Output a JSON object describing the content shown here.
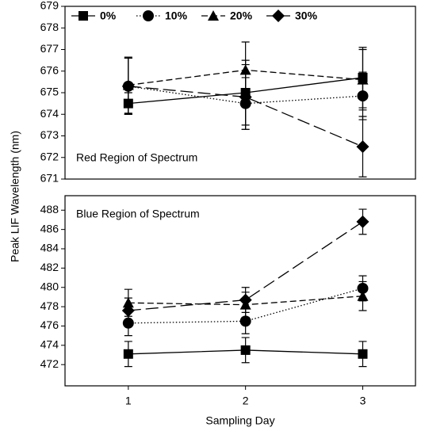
{
  "chart_data": [
    {
      "type": "line",
      "ylabel": "Peak LIF Wavelength (nm)",
      "annotation": "Red Region of Spectrum",
      "x": [
        1,
        2,
        3
      ],
      "xlim": [
        0.46,
        3.45
      ],
      "ylim": [
        671,
        679
      ],
      "yticks": [
        671,
        672,
        673,
        674,
        675,
        676,
        677,
        678,
        679
      ],
      "legend": "upper left",
      "series": [
        {
          "name": "0%",
          "color": "#000000",
          "marker": "square",
          "dash": "solid",
          "values": [
            674.5,
            675.0,
            675.7
          ],
          "errors": [
            0.5,
            1.5,
            1.4
          ]
        },
        {
          "name": "10%",
          "color": "#000000",
          "marker": "circle",
          "dash": "dotted",
          "values": [
            675.3,
            674.5,
            674.85
          ],
          "errors": [
            1.3,
            1.2,
            1.1
          ]
        },
        {
          "name": "20%",
          "color": "#000000",
          "marker": "triangle",
          "dash": "short",
          "values": [
            675.35,
            676.05,
            675.6
          ],
          "errors": [
            1.3,
            1.3,
            1.4
          ]
        },
        {
          "name": "30%",
          "color": "#000000",
          "marker": "diamond",
          "dash": "long",
          "values": [
            675.3,
            674.8,
            672.5
          ],
          "errors": [
            1.3,
            1.5,
            1.4
          ]
        }
      ]
    },
    {
      "type": "line",
      "xlabel": "Sampling Day",
      "annotation": "Blue Region of Spectrum",
      "x": [
        1,
        2,
        3
      ],
      "xlim": [
        0.46,
        3.45
      ],
      "xticks": [
        1,
        2,
        3
      ],
      "ylim": [
        469.8,
        489.5
      ],
      "yticks": [
        472,
        474,
        476,
        478,
        480,
        482,
        484,
        486,
        488
      ],
      "series": [
        {
          "color": "#000000",
          "marker": "square",
          "dash": "solid",
          "values": [
            473.1,
            473.5,
            473.1
          ],
          "errors": [
            1.3,
            1.3,
            1.3
          ]
        },
        {
          "color": "#000000",
          "marker": "circle",
          "dash": "dotted",
          "values": [
            476.3,
            476.5,
            479.9
          ],
          "errors": [
            1.3,
            1.3,
            1.3
          ]
        },
        {
          "color": "#000000",
          "marker": "triangle",
          "dash": "short",
          "values": [
            478.4,
            478.2,
            479.1
          ],
          "errors": [
            1.4,
            1.3,
            1.5
          ]
        },
        {
          "color": "#000000",
          "marker": "diamond",
          "dash": "long",
          "values": [
            477.6,
            478.7,
            486.8
          ],
          "errors": [
            1.3,
            1.3,
            1.3
          ]
        }
      ]
    }
  ]
}
